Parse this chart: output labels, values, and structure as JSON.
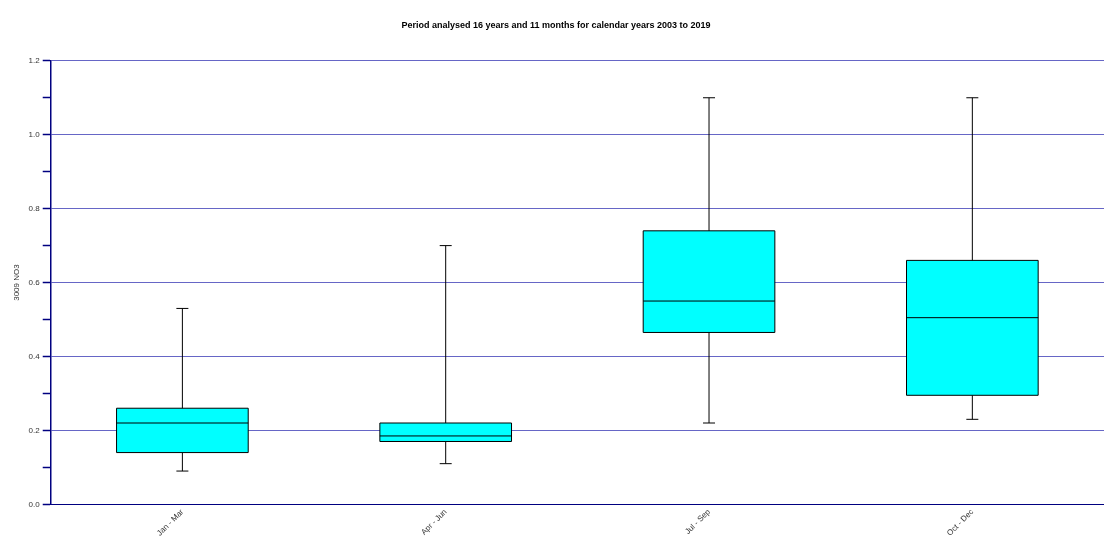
{
  "chart_data": {
    "type": "box",
    "title": "Period analysed 16 years and 11 months for calendar years 2003 to 2019",
    "ylabel": "3009 NO3",
    "categories": [
      "Jan - Mar",
      "Apr - Jun",
      "Jul - Sep",
      "Oct - Dec"
    ],
    "color": "#00ffff",
    "boxes": [
      {
        "low": 0.09,
        "q1": 0.14,
        "median": 0.22,
        "q3": 0.26,
        "high": 0.53
      },
      {
        "low": 0.11,
        "q1": 0.17,
        "median": 0.185,
        "q3": 0.22,
        "high": 0.7
      },
      {
        "low": 0.22,
        "q1": 0.465,
        "median": 0.55,
        "q3": 0.74,
        "high": 1.1
      },
      {
        "low": 0.23,
        "q1": 0.295,
        "median": 0.505,
        "q3": 0.66,
        "high": 1.1
      }
    ],
    "ylim": [
      0,
      1.2
    ],
    "yticks": [
      {
        "value": 0,
        "label": "0.0"
      },
      {
        "value": 0.1,
        "label": null
      },
      0.2,
      {
        "value": 0.3,
        "label": null
      },
      0.4,
      {
        "value": 0.5,
        "label": null
      },
      0.6,
      {
        "value": 0.7,
        "label": null
      },
      0.8,
      {
        "value": 0.9,
        "label": null
      },
      {
        "value": 1,
        "label": "1.0"
      },
      {
        "value": 1.1,
        "label": null
      },
      1.2
    ],
    "grid": "y"
  }
}
